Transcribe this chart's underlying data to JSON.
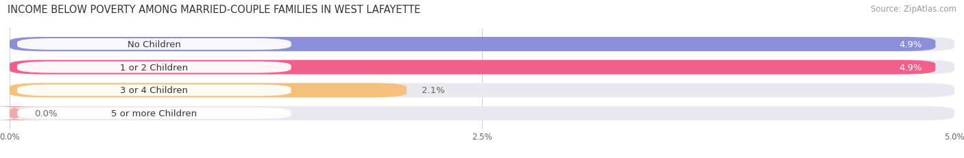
{
  "title": "INCOME BELOW POVERTY AMONG MARRIED-COUPLE FAMILIES IN WEST LAFAYETTE",
  "source": "Source: ZipAtlas.com",
  "categories": [
    "No Children",
    "1 or 2 Children",
    "3 or 4 Children",
    "5 or more Children"
  ],
  "values": [
    4.9,
    4.9,
    2.1,
    0.0
  ],
  "value_labels": [
    "4.9%",
    "4.9%",
    "2.1%",
    "0.0%"
  ],
  "bar_colors": [
    "#8b8fd8",
    "#f0608a",
    "#f5c07a",
    "#f5a8a8"
  ],
  "bar_bg_color": "#e8e8ee",
  "xlim": [
    0,
    5.0
  ],
  "xticks": [
    0.0,
    2.5,
    5.0
  ],
  "xticklabels": [
    "0.0%",
    "2.5%",
    "5.0%"
  ],
  "title_fontsize": 10.5,
  "source_fontsize": 8.5,
  "label_fontsize": 9.5,
  "value_fontsize": 9.5,
  "bar_height": 0.62,
  "bar_spacing": 1.0,
  "background_color": "#ffffff",
  "pill_bg": "#ffffff",
  "value_inside_color": "#ffffff",
  "value_outside_color": "#666666",
  "inside_threshold": 3.5
}
